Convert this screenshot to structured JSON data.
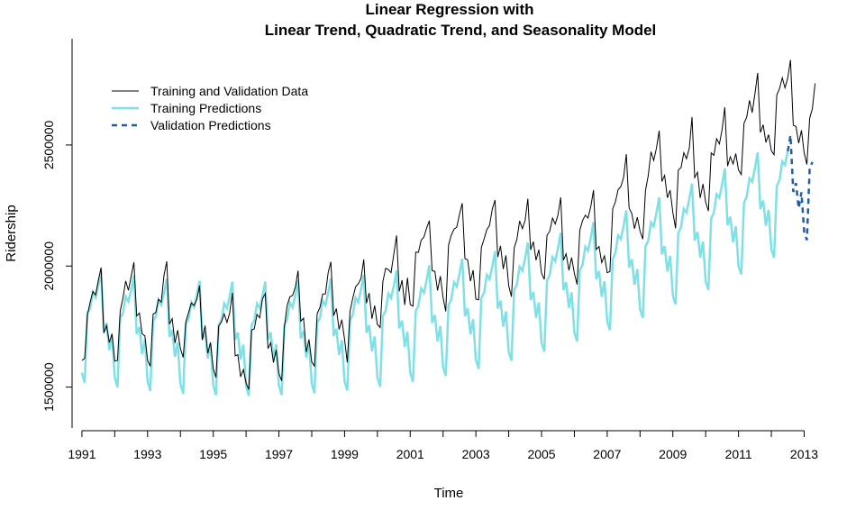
{
  "chart_data": {
    "type": "line",
    "title_line1": "Linear Regression with",
    "title_line2": "Linear Trend, Quadratic Trend, and Seasonality Model",
    "xlabel": "Time",
    "ylabel": "Ridership",
    "xlim": [
      1990.7,
      2013.7
    ],
    "ylim": [
      1320000,
      2950000
    ],
    "x_ticks": [
      1991,
      1992,
      1993,
      1994,
      1995,
      1996,
      1997,
      1998,
      1999,
      2000,
      2001,
      2002,
      2003,
      2004,
      2005,
      2006,
      2007,
      2008,
      2009,
      2010,
      2011,
      2012,
      2013
    ],
    "x_tick_labels": [
      "1991",
      "1993",
      "1995",
      "1997",
      "1999",
      "2001",
      "2003",
      "2005",
      "2007",
      "2009",
      "2011",
      "2013"
    ],
    "y_ticks": [
      1500000,
      2000000,
      2500000
    ],
    "y_tick_labels": [
      "1500000",
      "2000000",
      "2500000"
    ],
    "legend": [
      {
        "label": "Training and Validation Data",
        "color": "#000000",
        "style": "solid"
      },
      {
        "label": "Training Predictions",
        "color": "#7fe0e6",
        "style": "solid"
      },
      {
        "label": "Validation Predictions",
        "color": "#1f5fa8",
        "style": "dashed"
      }
    ],
    "legend_position": "top-left",
    "series": [
      {
        "name": "Training and Validation Data",
        "start": 1991,
        "frequency": 12,
        "annual_level": [
          1760000,
          1790000,
          1795000,
          1770000,
          1720000,
          1660000,
          1740000,
          1790000,
          1810000,
          1880000,
          1980000,
          2030000,
          2050000,
          2070000,
          2100000,
          2080000,
          2140000,
          2300000,
          2370000,
          2380000,
          2520000,
          2640000,
          2620000
        ],
        "seasonal_pattern": [
          -150000,
          -180000,
          30000,
          60000,
          110000,
          90000,
          140000,
          210000,
          -30000,
          -10000,
          -100000,
          -60000
        ]
      },
      {
        "name": "Training Predictions",
        "start": 1991,
        "end": 2012.5,
        "frequency": 12,
        "trend_quadratic": {
          "a": 1790000,
          "b": -22000,
          "c": 2200,
          "t0": 1991
        },
        "seasonal_pattern": [
          -230000,
          -270000,
          20000,
          40000,
          110000,
          90000,
          140000,
          200000,
          -40000,
          -10000,
          -120000,
          -60000
        ]
      },
      {
        "name": "Validation Predictions",
        "start": 2012.5,
        "end": 2013.25,
        "frequency": 12,
        "trend_quadratic": {
          "a": 1790000,
          "b": -22000,
          "c": 2200,
          "t0": 1991
        },
        "seasonal_pattern": [
          -230000,
          -270000,
          20000,
          40000,
          110000,
          90000,
          140000,
          200000,
          -40000,
          -10000,
          -120000,
          -60000
        ]
      }
    ]
  }
}
